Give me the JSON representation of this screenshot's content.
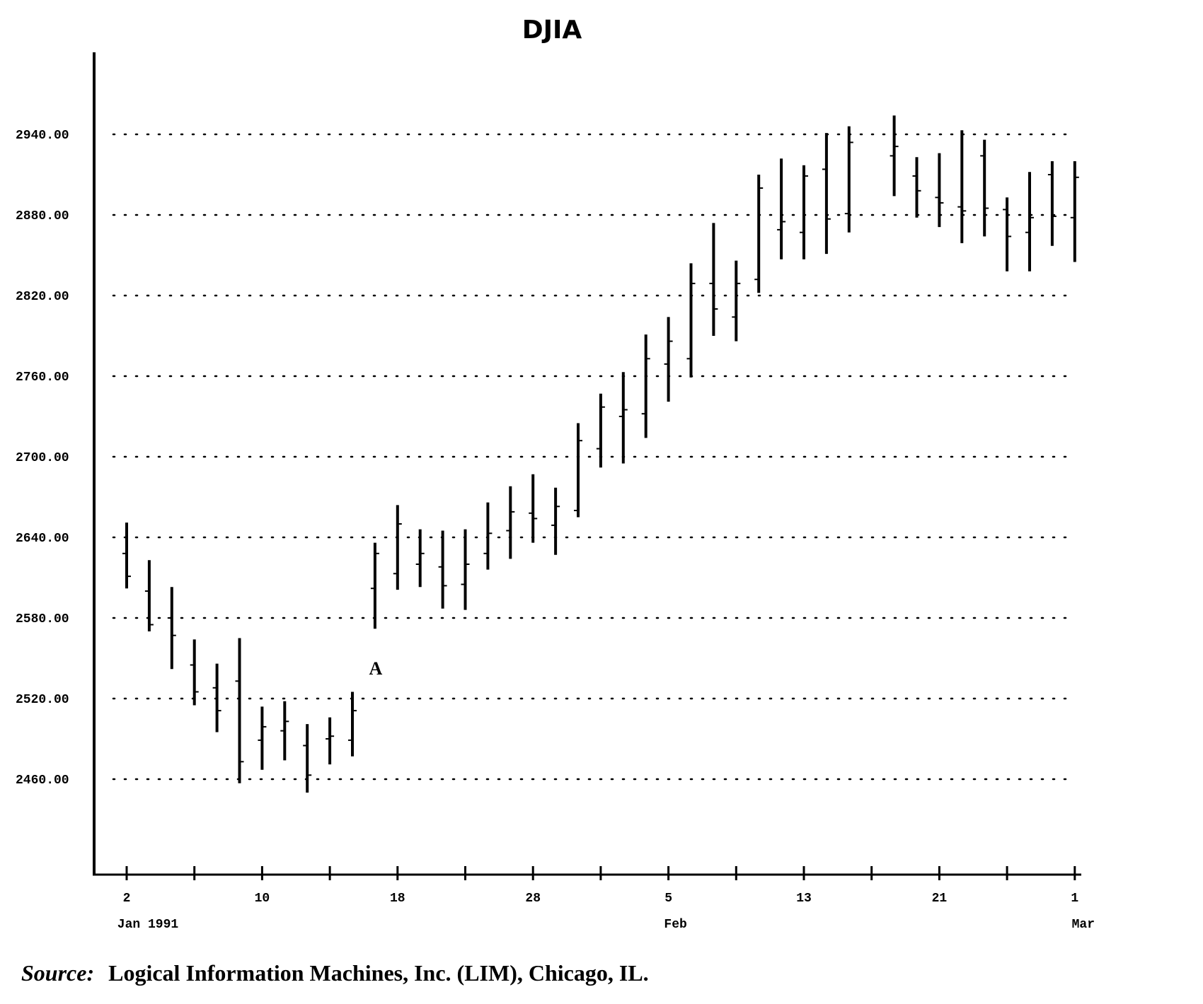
{
  "chart_data": {
    "type": "ohlc",
    "title": "DJIA",
    "categories": [
      "2",
      null,
      null,
      null,
      null,
      null,
      "10",
      null,
      null,
      null,
      null,
      null,
      "18",
      null,
      null,
      null,
      null,
      null,
      "28",
      null,
      null,
      null,
      null,
      null,
      "5",
      null,
      null,
      null,
      null,
      null,
      "13",
      null,
      null,
      null,
      null,
      null,
      "21",
      null,
      null,
      null,
      null,
      null,
      "1"
    ],
    "xticks": [
      0,
      3,
      6,
      9,
      12,
      15,
      18,
      21,
      24,
      27,
      30,
      33,
      36,
      39,
      42
    ],
    "month_labels": [
      "Jan 1991",
      "Feb",
      "Mar"
    ],
    "month_starts": [
      0,
      24,
      42
    ],
    "open": [
      2628,
      2600,
      2580,
      2545,
      2528,
      2533,
      2489,
      2496,
      2485,
      2490,
      2489,
      2602,
      2613,
      2620,
      2618,
      2605,
      2628,
      2645,
      2658,
      2649,
      2660,
      2706,
      2730,
      2732,
      2769,
      2773,
      2829,
      2804,
      2832,
      2869,
      2867,
      2914,
      2881,
      null,
      2924,
      2909,
      2893,
      2886,
      2924,
      2884,
      2867,
      2910,
      2878
    ],
    "high": [
      2651,
      2623,
      2603,
      2564,
      2546,
      2565,
      2514,
      2518,
      2501,
      2506,
      2525,
      2636,
      2664,
      2646,
      2645,
      2646,
      2666,
      2678,
      2687,
      2677,
      2725,
      2747,
      2763,
      2791,
      2804,
      2844,
      2874,
      2846,
      2910,
      2922,
      2917,
      2941,
      2946,
      null,
      2954,
      2923,
      2926,
      2943,
      2936,
      2893,
      2912,
      2920,
      2920
    ],
    "low": [
      2602,
      2570,
      2542,
      2515,
      2495,
      2457,
      2467,
      2474,
      2450,
      2471,
      2477,
      2572,
      2601,
      2603,
      2587,
      2586,
      2616,
      2624,
      2636,
      2627,
      2655,
      2692,
      2695,
      2714,
      2741,
      2759,
      2790,
      2786,
      2822,
      2847,
      2847,
      2851,
      2867,
      null,
      2894,
      2878,
      2871,
      2859,
      2864,
      2838,
      2838,
      2857,
      2845
    ],
    "close": [
      2611,
      2575,
      2567,
      2525,
      2511,
      2473,
      2499,
      2503,
      2463,
      2492,
      2511,
      2628,
      2650,
      2628,
      2604,
      2620,
      2643,
      2659,
      2654,
      2663,
      2712,
      2737,
      2735,
      2773,
      2786,
      2829,
      2810,
      2829,
      2900,
      2875,
      2909,
      2877,
      2934,
      null,
      2931,
      2898,
      2889,
      2883,
      2885,
      2864,
      2878,
      2879,
      2908
    ],
    "color": "#000000",
    "ylim": [
      2390,
      3000
    ],
    "yticks": [
      {
        "value": 2460,
        "label": "2460.00"
      },
      {
        "value": 2520,
        "label": "2520.00"
      },
      {
        "value": 2580,
        "label": "2580.00"
      },
      {
        "value": 2640,
        "label": "2640.00"
      },
      {
        "value": 2700,
        "label": "2700.00"
      },
      {
        "value": 2760,
        "label": "2760.00"
      },
      {
        "value": 2820,
        "label": "2820.00"
      },
      {
        "value": 2880,
        "label": "2880.00"
      },
      {
        "value": 2940,
        "label": "2940.00"
      }
    ],
    "grid": true,
    "annotations": [
      {
        "text": "A",
        "category": 11,
        "value": 2538
      }
    ]
  },
  "source": {
    "label": "Source:",
    "text": "Logical Information Machines, Inc. (LIM), Chicago, IL."
  }
}
